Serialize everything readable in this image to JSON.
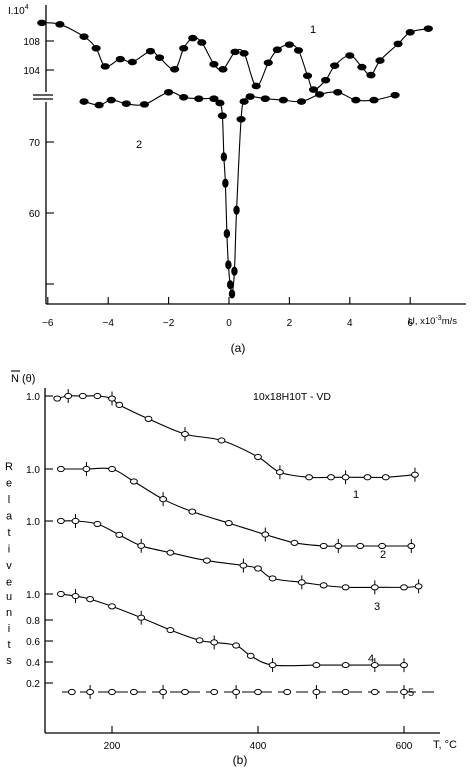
{
  "chart_data": [
    {
      "panel": "(a)",
      "type": "scatter",
      "ylabel": "I.10",
      "ylabel_exp": "4",
      "xlabel": "U, x10",
      "xlabel_exp": "-3",
      "xlabel_unit": "m/s",
      "caption": "(a)",
      "xlim": [
        -7,
        7.3
      ],
      "x_ticks": [
        -6,
        -4,
        -2,
        0,
        2,
        4,
        6
      ],
      "x_tick_labels": [
        "−6",
        "−4",
        "−2",
        "0",
        "2",
        "4",
        "6"
      ],
      "ylim_upper": [
        100,
        113
      ],
      "y_ticks_upper": [
        104,
        108
      ],
      "y_tick_labels_upper": [
        "104",
        "108"
      ],
      "ylim_lower": [
        45,
        80
      ],
      "y_ticks_lower": [
        50,
        60,
        70
      ],
      "y_tick_labels_lower": [
        "",
        "60",
        "70"
      ],
      "axis_break": true,
      "series": [
        {
          "name": "1",
          "x": [
            -6.2,
            -5.6,
            -4.8,
            -4.4,
            -4.1,
            -3.6,
            -3.2,
            -2.6,
            -2.3,
            -1.8,
            -1.5,
            -1.2,
            -0.9,
            -0.5,
            -0.2,
            0.2,
            0.5,
            0.9,
            1.3,
            1.6,
            2.0,
            2.3,
            2.6,
            2.8,
            3.2,
            3.5,
            4.0,
            4.4,
            4.7,
            5.0,
            5.6,
            6.0,
            6.6
          ],
          "y": [
            110.5,
            110.3,
            108.6,
            107.0,
            104.5,
            105.5,
            105.1,
            106.6,
            105.7,
            104.1,
            107.0,
            108.4,
            107.8,
            104.8,
            104.1,
            106.5,
            106.3,
            101.8,
            105.0,
            106.8,
            107.5,
            106.7,
            103.2,
            101.3,
            102.6,
            104.6,
            106.0,
            104.4,
            103.3,
            105.3,
            107.6,
            109.2,
            109.7
          ]
        },
        {
          "name": "2",
          "x": [
            -4.8,
            -4.3,
            -3.9,
            -3.4,
            -2.8,
            -2.0,
            -1.5,
            -1.0,
            -0.5,
            -0.3,
            -0.22,
            -0.17,
            -0.12,
            -0.07,
            -0.02,
            0.04,
            0.1,
            0.18,
            0.25,
            0.4,
            0.5,
            0.7,
            1.2,
            1.8,
            2.4,
            3.0,
            3.6,
            4.2,
            4.8,
            5.5
          ],
          "y": [
            75.7,
            75.2,
            75.9,
            75.4,
            75.3,
            77.0,
            76.3,
            76.1,
            76.1,
            75.5,
            73.7,
            67.9,
            64.2,
            57.1,
            52.7,
            49.9,
            48.6,
            51.8,
            60.4,
            73.2,
            75.7,
            76.4,
            76.1,
            75.9,
            75.7,
            76.7,
            77.0,
            75.9,
            75.9,
            76.6
          ]
        }
      ]
    },
    {
      "panel": "(b)",
      "type": "line",
      "ylabel": "N (θ)",
      "ylabel_vertical": "Relative units",
      "title": "10x18H10T - VD",
      "xlabel": "T, °C",
      "caption": "(b)",
      "xlim": [
        100,
        650
      ],
      "x_ticks": [
        200,
        400,
        600
      ],
      "x_tick_labels": [
        "200",
        "400",
        "600"
      ],
      "y_tick_labels": [
        "1.0",
        "1.0",
        "1.0",
        "1.0",
        "0.8",
        "0.6",
        "0.4",
        "0.2"
      ],
      "series": [
        {
          "name": "1",
          "x": [
            125,
            140,
            160,
            180,
            200,
            210,
            250,
            300,
            350,
            400,
            430,
            470,
            500,
            520,
            550,
            575,
            615
          ],
          "y": [
            0.98,
            1.0,
            1.0,
            1.0,
            0.98,
            0.93,
            0.82,
            0.7,
            0.65,
            0.52,
            0.4,
            0.36,
            0.36,
            0.36,
            0.36,
            0.36,
            0.38
          ],
          "y_level_top": 1.0
        },
        {
          "name": "2",
          "x": [
            130,
            165,
            200,
            230,
            270,
            310,
            360,
            410,
            450,
            490,
            510,
            540,
            570,
            610
          ],
          "y": [
            1.0,
            1.0,
            1.0,
            0.88,
            0.71,
            0.59,
            0.48,
            0.37,
            0.29,
            0.26,
            0.26,
            0.26,
            0.26,
            0.26
          ],
          "y_level_top": 1.0
        },
        {
          "name": "3",
          "x": [
            130,
            150,
            180,
            210,
            240,
            280,
            330,
            380,
            400,
            420,
            460,
            490,
            520,
            560,
            600,
            620
          ],
          "y": [
            1.0,
            1.0,
            0.97,
            0.86,
            0.75,
            0.68,
            0.6,
            0.55,
            0.52,
            0.42,
            0.38,
            0.35,
            0.33,
            0.33,
            0.33,
            0.34
          ],
          "y_level_top": 1.0
        },
        {
          "name": "4",
          "x": [
            130,
            150,
            170,
            200,
            240,
            280,
            320,
            340,
            370,
            390,
            420,
            480,
            520,
            560,
            600
          ],
          "y": [
            1.0,
            0.98,
            0.95,
            0.88,
            0.77,
            0.65,
            0.55,
            0.53,
            0.5,
            0.4,
            0.31,
            0.31,
            0.31,
            0.31,
            0.31
          ]
        },
        {
          "name": "5",
          "x": [
            145,
            170,
            200,
            230,
            270,
            300,
            340,
            370,
            400,
            440,
            480,
            520,
            560,
            600
          ],
          "y": [
            0.16,
            0.16,
            0.16,
            0.16,
            0.16,
            0.16,
            0.16,
            0.16,
            0.16,
            0.16,
            0.16,
            0.16,
            0.16,
            0.16
          ],
          "style": "dashed"
        }
      ]
    }
  ]
}
